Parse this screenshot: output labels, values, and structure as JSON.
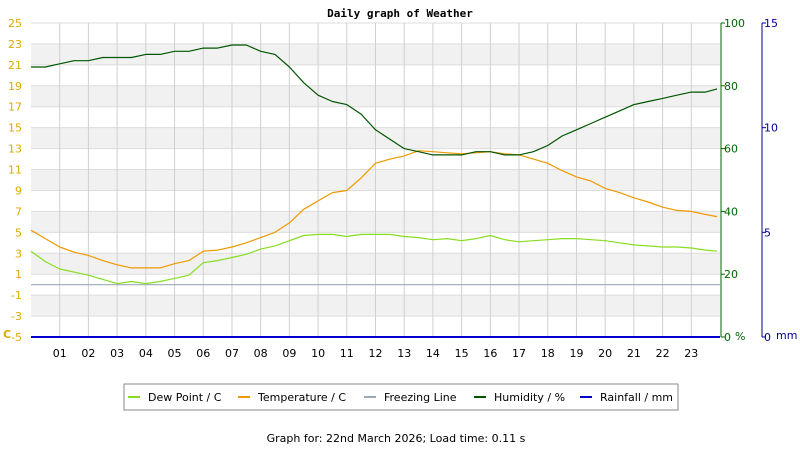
{
  "chart_data": {
    "type": "line",
    "title": "Daily graph of Weather",
    "footer": "Graph for: 22nd March 2026; Load time: 0.11 s",
    "x_ticks": [
      "01",
      "02",
      "03",
      "04",
      "05",
      "06",
      "07",
      "08",
      "09",
      "10",
      "11",
      "12",
      "13",
      "14",
      "15",
      "16",
      "17",
      "18",
      "19",
      "20",
      "21",
      "22",
      "23"
    ],
    "x_range_hours": [
      0,
      24
    ],
    "axes": {
      "left": {
        "unit_label": "C",
        "range": [
          -5,
          25
        ],
        "ticks": [
          -5,
          -3,
          -1,
          1,
          3,
          5,
          7,
          9,
          11,
          13,
          15,
          17,
          19,
          21,
          23,
          25
        ],
        "color": "#ddaa00"
      },
      "right_humidity": {
        "unit_label": "%",
        "range": [
          0,
          100
        ],
        "ticks": [
          0,
          20,
          40,
          60,
          80,
          100
        ],
        "color": "#006600"
      },
      "right_rain": {
        "unit_label": "mm",
        "range": [
          0,
          15
        ],
        "ticks": [
          0,
          5,
          10,
          15
        ],
        "color": "#000099"
      }
    },
    "grid": true,
    "legend_position": "bottom",
    "legend": [
      {
        "label": "Dew Point / C",
        "color": "#88dd22"
      },
      {
        "label": "Temperature / C",
        "color": "#ee9900"
      },
      {
        "label": "Freezing Line",
        "color": "#99aabb"
      },
      {
        "label": "Humidity / %",
        "color": "#005500"
      },
      {
        "label": "Rainfall / mm",
        "color": "#0000cc"
      }
    ],
    "series": [
      {
        "name": "Temperature / C",
        "axis": "left",
        "color": "#ee9900",
        "x": [
          0,
          0.5,
          1,
          1.5,
          2,
          2.5,
          3,
          3.5,
          4,
          4.5,
          5,
          5.5,
          6,
          6.5,
          7,
          7.5,
          8,
          8.5,
          9,
          9.5,
          10,
          10.5,
          11,
          11.5,
          12,
          12.5,
          13,
          13.5,
          14,
          14.5,
          15,
          15.5,
          16,
          16.5,
          17,
          17.5,
          18,
          18.5,
          19,
          19.5,
          20,
          20.5,
          21,
          21.5,
          22,
          22.5,
          23,
          23.5,
          23.9
        ],
        "y": [
          5.2,
          4.4,
          3.6,
          3.1,
          2.8,
          2.3,
          1.9,
          1.6,
          1.6,
          1.6,
          2.0,
          2.3,
          3.2,
          3.3,
          3.6,
          4.0,
          4.5,
          5.0,
          5.9,
          7.2,
          8.0,
          8.8,
          9.0,
          10.2,
          11.6,
          12.0,
          12.3,
          12.8,
          12.7,
          12.6,
          12.5,
          12.6,
          12.7,
          12.5,
          12.4,
          12.0,
          11.6,
          10.9,
          10.3,
          9.9,
          9.2,
          8.8,
          8.3,
          7.9,
          7.4,
          7.1,
          7.0,
          6.7,
          6.5
        ]
      },
      {
        "name": "Dew Point / C",
        "axis": "left",
        "color": "#88dd22",
        "x": [
          0,
          0.5,
          1,
          1.5,
          2,
          2.5,
          3,
          3.5,
          4,
          4.5,
          5,
          5.5,
          6,
          6.5,
          7,
          7.5,
          8,
          8.5,
          9,
          9.5,
          10,
          10.5,
          11,
          11.5,
          12,
          12.5,
          13,
          13.5,
          14,
          14.5,
          15,
          15.5,
          16,
          16.5,
          17,
          17.5,
          18,
          18.5,
          19,
          19.5,
          20,
          20.5,
          21,
          21.5,
          22,
          22.5,
          23,
          23.5,
          23.9
        ],
        "y": [
          3.2,
          2.2,
          1.5,
          1.2,
          0.9,
          0.5,
          0.1,
          0.3,
          0.1,
          0.3,
          0.6,
          0.9,
          2.1,
          2.3,
          2.6,
          2.9,
          3.4,
          3.7,
          4.2,
          4.7,
          4.8,
          4.8,
          4.6,
          4.8,
          4.8,
          4.8,
          4.6,
          4.5,
          4.3,
          4.4,
          4.2,
          4.4,
          4.7,
          4.3,
          4.1,
          4.2,
          4.3,
          4.4,
          4.4,
          4.3,
          4.2,
          4.0,
          3.8,
          3.7,
          3.6,
          3.6,
          3.5,
          3.3,
          3.2
        ]
      },
      {
        "name": "Humidity / %",
        "axis": "right_humidity",
        "color": "#005500",
        "x": [
          0,
          0.5,
          1,
          1.5,
          2,
          2.5,
          3,
          3.5,
          4,
          4.5,
          5,
          5.5,
          6,
          6.5,
          7,
          7.5,
          8,
          8.5,
          9,
          9.5,
          10,
          10.5,
          11,
          11.5,
          12,
          12.5,
          13,
          13.5,
          14,
          14.5,
          15,
          15.5,
          16,
          16.5,
          17,
          17.5,
          18,
          18.5,
          19,
          19.5,
          20,
          20.5,
          21,
          21.5,
          22,
          22.5,
          23,
          23.5,
          23.9
        ],
        "y": [
          86,
          86,
          87,
          88,
          88,
          89,
          89,
          89,
          90,
          90,
          91,
          91,
          92,
          92,
          93,
          93,
          91,
          90,
          86,
          81,
          77,
          75,
          74,
          71,
          66,
          63,
          60,
          59,
          58,
          58,
          58,
          59,
          59,
          58,
          58,
          59,
          61,
          64,
          66,
          68,
          70,
          72,
          74,
          75,
          76,
          77,
          78,
          78,
          79
        ]
      },
      {
        "name": "Freezing Line",
        "axis": "left",
        "color": "#99aabb",
        "x": [
          0,
          24
        ],
        "y": [
          0,
          0
        ]
      },
      {
        "name": "Rainfall / mm",
        "axis": "right_rain",
        "color": "#0000cc",
        "x": [
          0,
          24
        ],
        "y": [
          0,
          0
        ]
      }
    ]
  }
}
